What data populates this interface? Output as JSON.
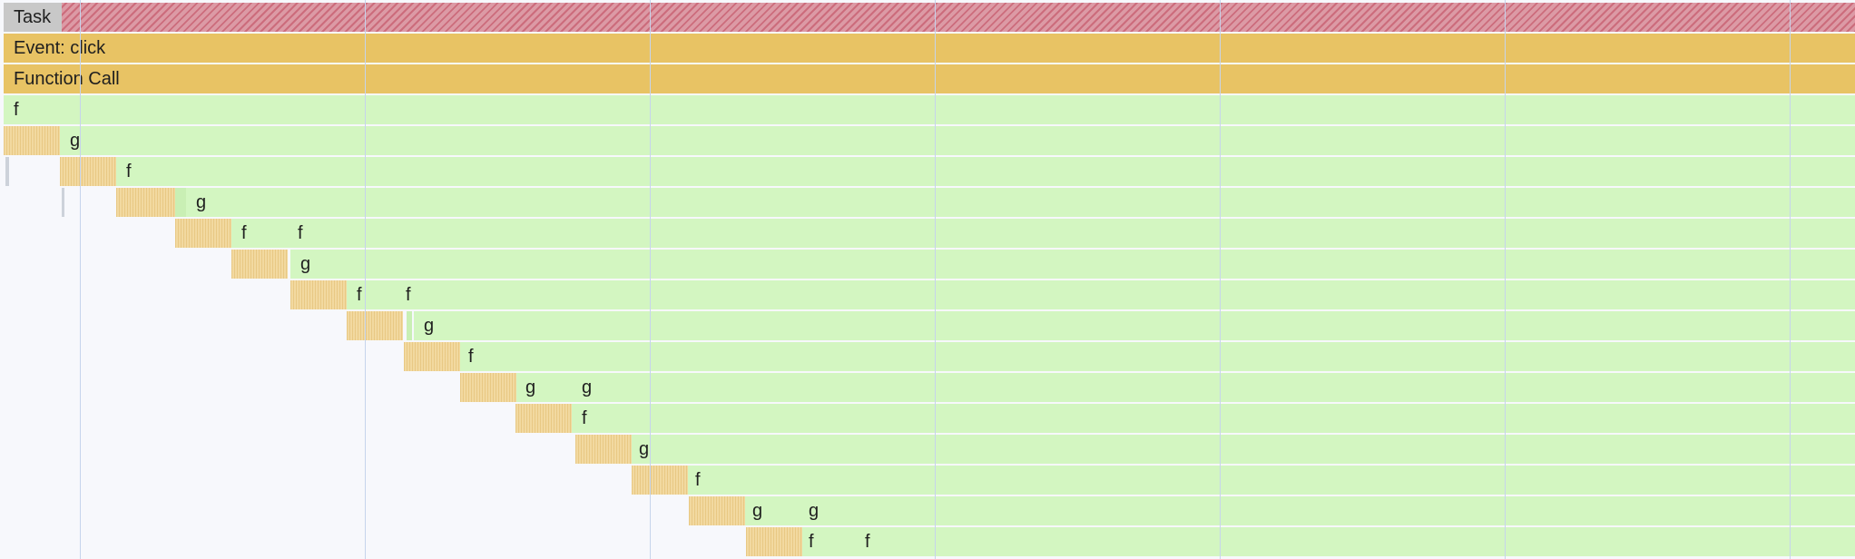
{
  "rows": [
    {
      "label": "Task"
    },
    {
      "label": "Event: click"
    },
    {
      "label": "Function Call"
    }
  ],
  "frames": [
    {
      "label": "f"
    },
    {
      "label": "g"
    },
    {
      "label": "f"
    },
    {
      "label": "g"
    },
    {
      "label": "f"
    },
    {
      "label": "f"
    },
    {
      "label": "g"
    },
    {
      "label": "f"
    },
    {
      "label": "f"
    },
    {
      "label": "g"
    },
    {
      "label": "f"
    },
    {
      "label": "g"
    },
    {
      "label": "g"
    },
    {
      "label": "f"
    },
    {
      "label": "g"
    },
    {
      "label": "f"
    },
    {
      "label": "g"
    },
    {
      "label": "g"
    },
    {
      "label": "f"
    },
    {
      "label": "f"
    }
  ],
  "colors": {
    "task": "#dc9aa5",
    "event": "#e8c364",
    "script": "#d3f6c1",
    "self_time": "#f2d9a0",
    "grid": "#c6d4ec",
    "background": "#f7f8fc"
  }
}
